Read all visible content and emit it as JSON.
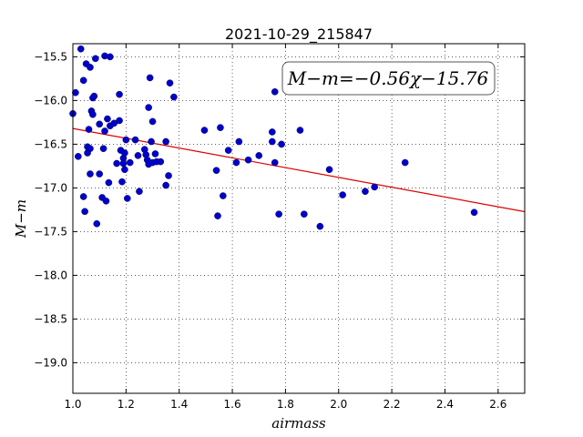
{
  "chart_data": {
    "type": "scatter",
    "title": "2021-10-29_215847",
    "xlabel": "airmass",
    "ylabel": "M−m",
    "xlim": [
      1.0,
      2.7
    ],
    "ylim": [
      -19.35,
      -15.35
    ],
    "y_inverted": true,
    "grid": true,
    "x_ticks": [
      1.0,
      1.2,
      1.4,
      1.6,
      1.8,
      2.0,
      2.2,
      2.4,
      2.6
    ],
    "x_tick_labels": [
      "1.0",
      "1.2",
      "1.4",
      "1.6",
      "1.8",
      "2.0",
      "2.2",
      "2.4",
      "2.6"
    ],
    "y_ticks": [
      -15.5,
      -16.0,
      -16.5,
      -17.0,
      -17.5,
      -18.0,
      -18.5,
      -19.0
    ],
    "y_tick_labels": [
      "−15.5",
      "−16.0",
      "−16.5",
      "−17.0",
      "−17.5",
      "−18.0",
      "−18.5",
      "−19.0"
    ],
    "annotation": "M−m=−0.56χ−15.76",
    "annotation_position": "top-right",
    "marker_color": "#0000cc",
    "fit_color": "#dd0000",
    "fit": {
      "slope": -0.56,
      "intercept": -15.76
    },
    "points": [
      {
        "x": 1.0,
        "y": -16.15
      },
      {
        "x": 1.01,
        "y": -15.91
      },
      {
        "x": 1.02,
        "y": -16.64
      },
      {
        "x": 1.03,
        "y": -15.41
      },
      {
        "x": 1.04,
        "y": -15.77
      },
      {
        "x": 1.04,
        "y": -17.1
      },
      {
        "x": 1.045,
        "y": -17.27
      },
      {
        "x": 1.05,
        "y": -15.58
      },
      {
        "x": 1.055,
        "y": -16.53
      },
      {
        "x": 1.055,
        "y": -16.6
      },
      {
        "x": 1.06,
        "y": -16.33
      },
      {
        "x": 1.065,
        "y": -15.62
      },
      {
        "x": 1.065,
        "y": -16.55
      },
      {
        "x": 1.065,
        "y": -16.84
      },
      {
        "x": 1.07,
        "y": -16.12
      },
      {
        "x": 1.075,
        "y": -15.97
      },
      {
        "x": 1.075,
        "y": -16.16
      },
      {
        "x": 1.08,
        "y": -15.95
      },
      {
        "x": 1.085,
        "y": -15.52
      },
      {
        "x": 1.09,
        "y": -17.41
      },
      {
        "x": 1.1,
        "y": -16.84
      },
      {
        "x": 1.1,
        "y": -16.27
      },
      {
        "x": 1.11,
        "y": -17.11
      },
      {
        "x": 1.115,
        "y": -16.55
      },
      {
        "x": 1.12,
        "y": -15.49
      },
      {
        "x": 1.12,
        "y": -16.35
      },
      {
        "x": 1.125,
        "y": -17.15
      },
      {
        "x": 1.13,
        "y": -16.21
      },
      {
        "x": 1.14,
        "y": -15.5
      },
      {
        "x": 1.14,
        "y": -16.29
      },
      {
        "x": 1.135,
        "y": -16.94
      },
      {
        "x": 1.155,
        "y": -16.26
      },
      {
        "x": 1.165,
        "y": -16.72
      },
      {
        "x": 1.175,
        "y": -15.93
      },
      {
        "x": 1.175,
        "y": -16.23
      },
      {
        "x": 1.18,
        "y": -16.57
      },
      {
        "x": 1.185,
        "y": -16.93
      },
      {
        "x": 1.19,
        "y": -16.66
      },
      {
        "x": 1.19,
        "y": -16.72
      },
      {
        "x": 1.195,
        "y": -16.6
      },
      {
        "x": 1.195,
        "y": -16.79
      },
      {
        "x": 1.2,
        "y": -16.45
      },
      {
        "x": 1.205,
        "y": -17.12
      },
      {
        "x": 1.215,
        "y": -16.71
      },
      {
        "x": 1.235,
        "y": -16.45
      },
      {
        "x": 1.245,
        "y": -16.63
      },
      {
        "x": 1.25,
        "y": -17.04
      },
      {
        "x": 1.27,
        "y": -16.56
      },
      {
        "x": 1.275,
        "y": -16.62
      },
      {
        "x": 1.28,
        "y": -16.68
      },
      {
        "x": 1.285,
        "y": -16.73
      },
      {
        "x": 1.285,
        "y": -16.08
      },
      {
        "x": 1.29,
        "y": -15.74
      },
      {
        "x": 1.295,
        "y": -16.47
      },
      {
        "x": 1.3,
        "y": -16.24
      },
      {
        "x": 1.3,
        "y": -16.71
      },
      {
        "x": 1.31,
        "y": -16.61
      },
      {
        "x": 1.315,
        "y": -16.7
      },
      {
        "x": 1.33,
        "y": -16.7
      },
      {
        "x": 1.35,
        "y": -16.47
      },
      {
        "x": 1.35,
        "y": -16.97
      },
      {
        "x": 1.36,
        "y": -16.86
      },
      {
        "x": 1.365,
        "y": -15.8
      },
      {
        "x": 1.38,
        "y": -15.96
      },
      {
        "x": 1.495,
        "y": -16.34
      },
      {
        "x": 1.54,
        "y": -16.8
      },
      {
        "x": 1.545,
        "y": -17.32
      },
      {
        "x": 1.555,
        "y": -16.31
      },
      {
        "x": 1.565,
        "y": -17.09
      },
      {
        "x": 1.585,
        "y": -16.57
      },
      {
        "x": 1.615,
        "y": -16.71
      },
      {
        "x": 1.625,
        "y": -16.47
      },
      {
        "x": 1.66,
        "y": -16.68
      },
      {
        "x": 1.7,
        "y": -16.63
      },
      {
        "x": 1.75,
        "y": -16.36
      },
      {
        "x": 1.75,
        "y": -16.47
      },
      {
        "x": 1.76,
        "y": -15.9
      },
      {
        "x": 1.76,
        "y": -16.71
      },
      {
        "x": 1.775,
        "y": -17.3
      },
      {
        "x": 1.785,
        "y": -16.5
      },
      {
        "x": 1.855,
        "y": -16.34
      },
      {
        "x": 1.87,
        "y": -17.3
      },
      {
        "x": 1.93,
        "y": -17.44
      },
      {
        "x": 1.965,
        "y": -16.79
      },
      {
        "x": 2.015,
        "y": -17.08
      },
      {
        "x": 2.1,
        "y": -17.04
      },
      {
        "x": 2.135,
        "y": -16.99
      },
      {
        "x": 2.25,
        "y": -16.71
      },
      {
        "x": 2.51,
        "y": -17.28
      }
    ]
  }
}
